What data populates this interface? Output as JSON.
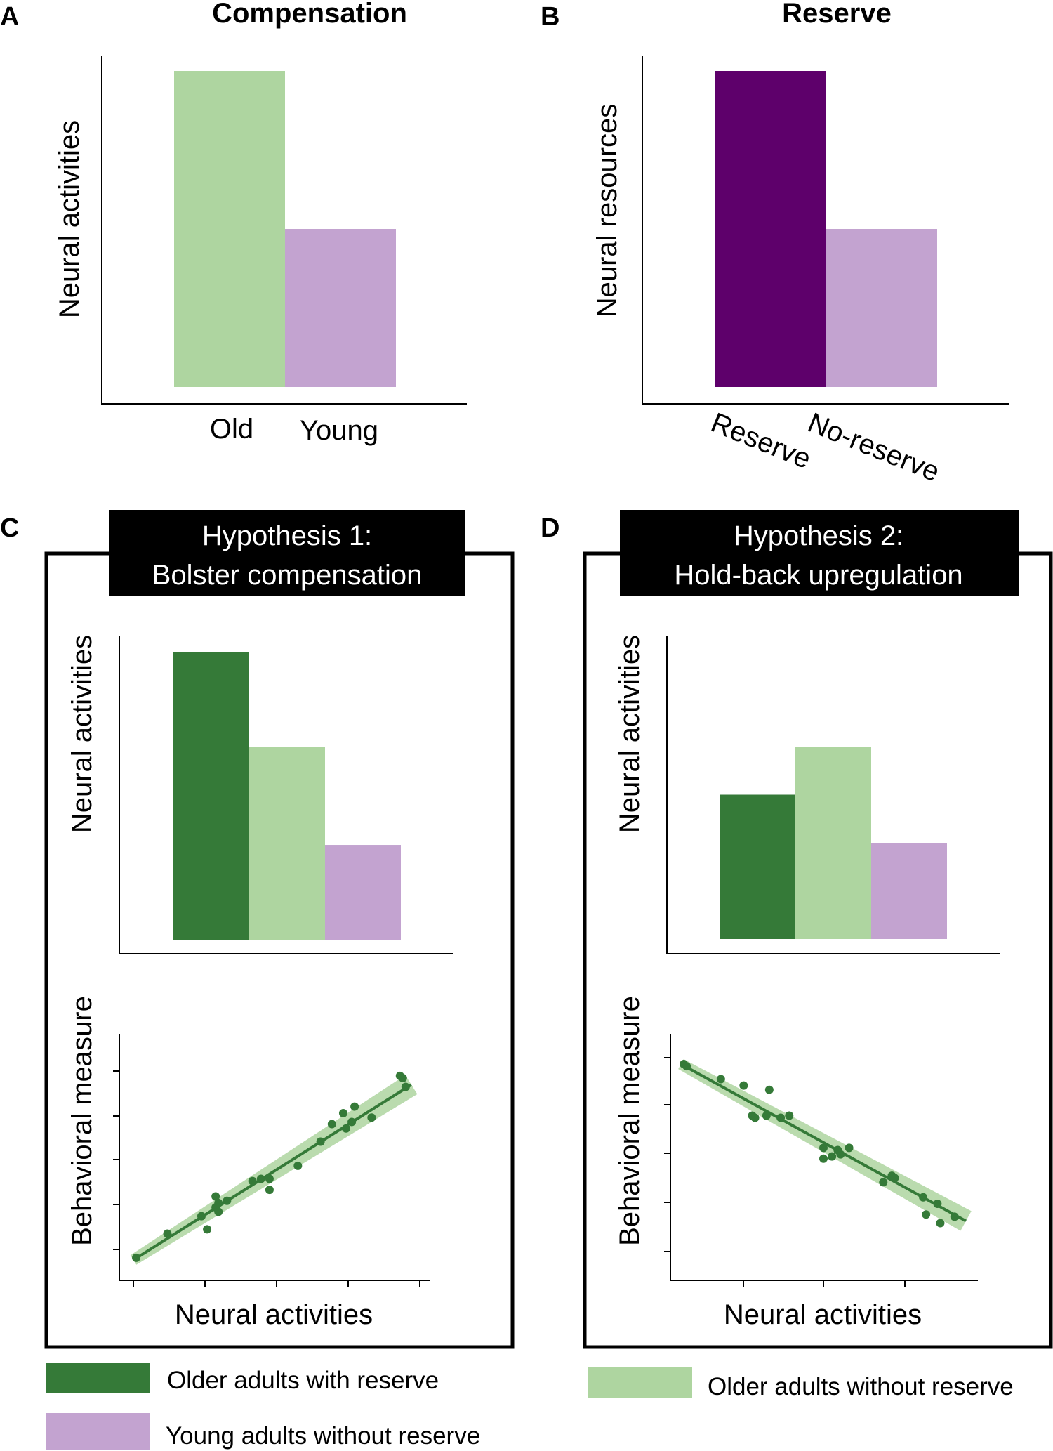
{
  "colors": {
    "old_with_reserve": "#357a38",
    "old_without_reserve": "#aed5a0",
    "young_without_reserve": "#c3a3d0",
    "reserve": "#5e006b",
    "no_reserve": "#c3a3d0",
    "black": "#000000"
  },
  "panels": {
    "A": {
      "letter": "A",
      "title": "Compensation",
      "ylabel": "Neural activities",
      "tick_labels": [
        "Old",
        "Young"
      ]
    },
    "B": {
      "letter": "B",
      "title": "Reserve",
      "ylabel": "Neural resources",
      "tick_labels": [
        "Reserve",
        "No-reserve"
      ]
    },
    "C": {
      "letter": "C",
      "hypothesis_line1": "Hypothesis 1:",
      "hypothesis_line2": "Bolster compensation",
      "bar_ylabel": "Neural activities",
      "scatter_ylabel": "Behavioral measure",
      "scatter_xlabel": "Neural activities"
    },
    "D": {
      "letter": "D",
      "hypothesis_line1": "Hypothesis 2:",
      "hypothesis_line2": "Hold-back upregulation",
      "bar_ylabel": "Neural activities",
      "scatter_ylabel": "Behavioral measure",
      "scatter_xlabel": "Neural activities"
    }
  },
  "legend": {
    "old_with_reserve": "Older adults with reserve",
    "young_without_reserve": "Young adults without reserve",
    "old_without_reserve": "Older adults without reserve"
  },
  "chart_data": [
    {
      "panel": "A",
      "type": "bar",
      "title": "Compensation",
      "ylabel": "Neural activities",
      "categories": [
        "Old",
        "Young"
      ],
      "values": [
        100,
        50
      ],
      "colors": [
        "#aed5a0",
        "#c3a3d0"
      ],
      "ylim": [
        0,
        100
      ]
    },
    {
      "panel": "B",
      "type": "bar",
      "title": "Reserve",
      "ylabel": "Neural resources",
      "categories": [
        "Reserve",
        "No-reserve"
      ],
      "values": [
        100,
        50
      ],
      "colors": [
        "#5e006b",
        "#c3a3d0"
      ],
      "ylim": [
        0,
        100
      ]
    },
    {
      "panel": "C",
      "type": "bar",
      "title": "Hypothesis 1: Bolster compensation",
      "ylabel": "Neural activities",
      "series": [
        {
          "name": "Older adults with reserve",
          "value": 100
        },
        {
          "name": "Older adults without reserve",
          "value": 67
        },
        {
          "name": "Young adults without reserve",
          "value": 33
        }
      ],
      "ylim": [
        0,
        100
      ]
    },
    {
      "panel": "C",
      "type": "scatter",
      "xlabel": "Neural activities",
      "ylabel": "Behavioral measure",
      "trend": "positive",
      "xlim": [
        0,
        100
      ],
      "ylim": [
        0,
        100
      ],
      "points": [
        [
          1,
          1
        ],
        [
          12,
          12
        ],
        [
          24,
          20
        ],
        [
          26,
          14
        ],
        [
          29,
          24
        ],
        [
          29,
          29
        ],
        [
          30,
          22
        ],
        [
          30,
          26
        ],
        [
          33,
          27
        ],
        [
          42,
          36
        ],
        [
          45,
          37
        ],
        [
          48,
          37
        ],
        [
          48,
          32
        ],
        [
          58,
          43
        ],
        [
          66,
          54
        ],
        [
          70,
          62
        ],
        [
          74,
          67
        ],
        [
          75,
          60
        ],
        [
          77,
          63
        ],
        [
          78,
          70
        ],
        [
          84,
          65
        ],
        [
          94,
          84
        ],
        [
          95,
          83
        ],
        [
          96,
          79
        ]
      ],
      "fit": [
        [
          0,
          0
        ],
        [
          98,
          80
        ]
      ]
    },
    {
      "panel": "D",
      "type": "bar",
      "title": "Hypothesis 2: Hold-back upregulation",
      "ylabel": "Neural activities",
      "series": [
        {
          "name": "Older adults with reserve",
          "value": 75
        },
        {
          "name": "Older adults without reserve",
          "value": 100
        },
        {
          "name": "Young adults without reserve",
          "value": 50
        }
      ],
      "ylim": [
        0,
        100
      ]
    },
    {
      "panel": "D",
      "type": "scatter",
      "xlabel": "Neural activities",
      "ylabel": "Behavioral measure",
      "trend": "negative",
      "xlim": [
        0,
        100
      ],
      "ylim": [
        0,
        100
      ],
      "points": [
        [
          1,
          99
        ],
        [
          2,
          98
        ],
        [
          14,
          92
        ],
        [
          22,
          89
        ],
        [
          25,
          75
        ],
        [
          26,
          74
        ],
        [
          30,
          75
        ],
        [
          31,
          87
        ],
        [
          35,
          74
        ],
        [
          38,
          75
        ],
        [
          50,
          60
        ],
        [
          50,
          55
        ],
        [
          53,
          56
        ],
        [
          55,
          59
        ],
        [
          56,
          57
        ],
        [
          59,
          60
        ],
        [
          71,
          44
        ],
        [
          74,
          47
        ],
        [
          75,
          46
        ],
        [
          85,
          37
        ],
        [
          86,
          29
        ],
        [
          90,
          34
        ],
        [
          91,
          25
        ],
        [
          96,
          28
        ]
      ],
      "fit": [
        [
          0,
          99
        ],
        [
          100,
          26
        ]
      ]
    }
  ]
}
